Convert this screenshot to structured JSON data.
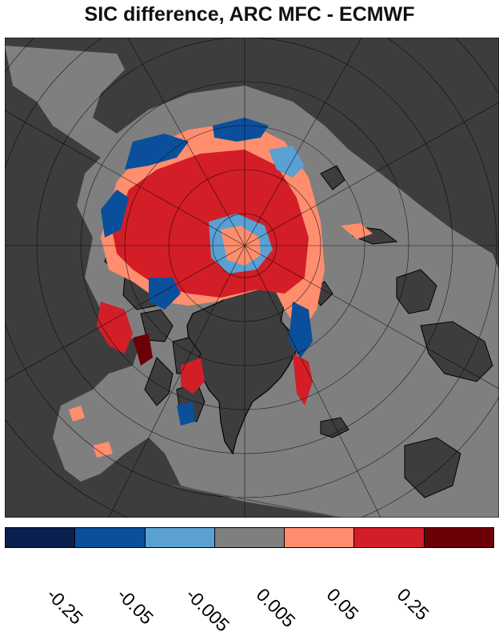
{
  "title": "SIC difference, ARC MFC - ECMWF",
  "map": {
    "projection": "polar stereographic (north pole)",
    "land_color": "#3d3d3d",
    "ocean_color": "#7f7f7f",
    "icons": [
      "polar-map",
      "coastline",
      "graticule"
    ]
  },
  "colorbar": {
    "colors": [
      "#0a1f4e",
      "#0b4f9c",
      "#5aa0d2",
      "#7f7f7f",
      "#ff8e6e",
      "#d31e27",
      "#6b0007"
    ],
    "tick_labels": [
      "-0.25",
      "-0.05",
      "-0.005",
      "0.005",
      "0.05",
      "0.25"
    ]
  }
}
